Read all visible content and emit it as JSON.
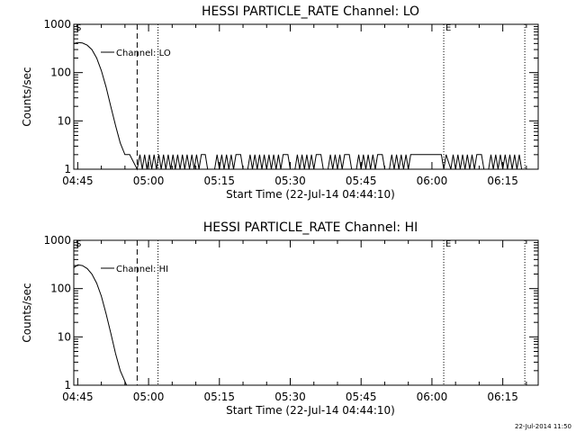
{
  "footer": {
    "timestamp": "22-Jul-2014 11:50"
  },
  "chart_data": [
    {
      "type": "line",
      "title": "HESSI PARTICLE_RATE Channel: LO",
      "ylabel": "Counts/sec",
      "xlabel": "Start Time (22-Jul-14 04:44:10)",
      "y_scale": "log",
      "ylim": [
        1,
        1000
      ],
      "y_ticks": [
        "1",
        "10",
        "100",
        "1000"
      ],
      "xlim": [
        "04:44:10",
        "06:22:30"
      ],
      "x_ticks": [
        "04:45",
        "05:00",
        "05:15",
        "05:30",
        "05:45",
        "06:00",
        "06:15"
      ],
      "legend": "Channel: LO",
      "markers": [
        {
          "label": "S",
          "time": "04:44:10",
          "style": "dotted"
        },
        {
          "label": "",
          "time": "04:57:35",
          "style": "dashed"
        },
        {
          "label": "",
          "time": "05:02:00",
          "style": "dotted"
        },
        {
          "label": "E",
          "time": "06:02:30",
          "style": "dotted"
        },
        {
          "label": "",
          "time": "06:19:40",
          "style": "dotted"
        }
      ],
      "series": [
        {
          "x": [
            "04:44:10",
            "04:45:00",
            "04:46:00",
            "04:47:00",
            "04:48:00",
            "04:49:00",
            "04:50:00",
            "04:51:00",
            "04:52:00",
            "04:53:00",
            "04:54:00",
            "04:55:00",
            "04:55:40",
            "04:56:00",
            "04:57:35",
            "04:58:10",
            "04:58:40",
            "04:59:10",
            "04:59:40",
            "05:00:10",
            "05:00:40",
            "05:01:10",
            "05:01:40",
            "05:02:10",
            "05:02:40",
            "05:03:10",
            "05:03:40",
            "05:04:10",
            "05:04:40",
            "05:05:10",
            "05:05:40",
            "05:06:10",
            "05:06:40",
            "05:07:10",
            "05:07:40",
            "05:08:10",
            "05:08:40",
            "05:09:10",
            "05:09:40",
            "05:10:10",
            "05:10:40",
            "05:11:10",
            "05:12:00",
            "05:12:30",
            "05:14:00",
            "05:14:30",
            "05:15:00",
            "05:15:30",
            "05:16:00",
            "05:16:30",
            "05:17:00",
            "05:17:30",
            "05:18:00",
            "05:18:30",
            "05:19:30",
            "05:20:00",
            "05:21:00",
            "05:21:30",
            "05:22:00",
            "05:22:30",
            "05:23:00",
            "05:23:30",
            "05:24:00",
            "05:24:30",
            "05:25:00",
            "05:25:30",
            "05:26:00",
            "05:26:30",
            "05:27:00",
            "05:27:30",
            "05:28:00",
            "05:28:30",
            "05:29:30",
            "05:30:00",
            "05:31:00",
            "05:31:30",
            "05:32:00",
            "05:32:30",
            "05:33:00",
            "05:33:30",
            "05:34:00",
            "05:34:30",
            "05:35:00",
            "05:35:30",
            "05:36:30",
            "05:37:00",
            "05:38:00",
            "05:38:30",
            "05:39:00",
            "05:39:30",
            "05:40:00",
            "05:40:30",
            "05:41:00",
            "05:41:30",
            "05:42:30",
            "05:43:00",
            "05:44:00",
            "05:44:30",
            "05:45:00",
            "05:45:30",
            "05:46:00",
            "05:46:30",
            "05:47:00",
            "05:47:30",
            "05:48:00",
            "05:48:30",
            "05:49:30",
            "05:50:00",
            "05:51:00",
            "05:51:30",
            "05:52:00",
            "05:52:30",
            "05:53:00",
            "05:53:30",
            "05:54:00",
            "05:54:30",
            "05:55:00",
            "05:55:30",
            "05:56:00",
            "05:56:30",
            "06:01:30",
            "06:02:00",
            "06:02:30",
            "06:03:00",
            "06:04:00",
            "06:04:30",
            "06:05:00",
            "06:05:30",
            "06:06:00",
            "06:06:30",
            "06:07:00",
            "06:07:30",
            "06:08:00",
            "06:08:30",
            "06:09:00",
            "06:09:30",
            "06:10:30",
            "06:11:00",
            "06:12:00",
            "06:12:30",
            "06:13:00",
            "06:13:30",
            "06:14:00",
            "06:14:30",
            "06:15:00",
            "06:15:30",
            "06:16:00",
            "06:16:30",
            "06:17:00",
            "06:17:30",
            "06:18:00",
            "06:18:30",
            "06:19:00"
          ],
          "y": [
            400,
            420,
            410,
            370,
            300,
            200,
            110,
            50,
            20,
            8,
            3.5,
            2,
            2,
            2,
            1,
            2,
            1,
            2,
            1,
            2,
            1,
            2,
            1,
            2,
            1,
            2,
            1,
            2,
            1,
            2,
            1,
            2,
            1,
            2,
            1,
            2,
            1,
            2,
            1,
            2,
            1,
            2,
            2,
            1,
            1,
            2,
            1,
            2,
            1,
            2,
            1,
            2,
            1,
            2,
            2,
            1,
            1,
            2,
            1,
            2,
            1,
            2,
            1,
            2,
            1,
            2,
            1,
            2,
            1,
            2,
            1,
            2,
            2,
            1,
            1,
            2,
            1,
            2,
            1,
            2,
            1,
            2,
            1,
            2,
            2,
            1,
            1,
            2,
            1,
            2,
            1,
            2,
            1,
            2,
            2,
            1,
            1,
            2,
            1,
            2,
            1,
            2,
            1,
            2,
            1,
            2,
            2,
            1,
            1,
            2,
            1,
            2,
            1,
            2,
            1,
            2,
            1,
            2,
            2,
            2,
            2,
            2,
            1,
            2,
            1,
            2,
            1,
            2,
            1,
            2,
            1,
            2,
            1,
            2,
            1,
            2,
            2,
            1,
            1,
            2,
            1,
            2,
            1,
            2,
            1,
            2,
            1,
            2,
            1,
            2,
            1,
            2,
            1
          ]
        }
      ]
    },
    {
      "type": "line",
      "title": "HESSI PARTICLE_RATE Channel: HI",
      "ylabel": "Counts/sec",
      "xlabel": "Start Time (22-Jul-14 04:44:10)",
      "y_scale": "log",
      "ylim": [
        1,
        1000
      ],
      "y_ticks": [
        "1",
        "10",
        "100",
        "1000"
      ],
      "xlim": [
        "04:44:10",
        "06:22:30"
      ],
      "x_ticks": [
        "04:45",
        "05:00",
        "05:15",
        "05:30",
        "05:45",
        "06:00",
        "06:15"
      ],
      "legend": "Channel: HI",
      "markers": [
        {
          "label": "S",
          "time": "04:44:10",
          "style": "dotted"
        },
        {
          "label": "",
          "time": "04:57:35",
          "style": "dashed"
        },
        {
          "label": "",
          "time": "05:02:00",
          "style": "dotted"
        },
        {
          "label": "E",
          "time": "06:02:30",
          "style": "dotted"
        },
        {
          "label": "",
          "time": "06:19:40",
          "style": "dotted"
        }
      ],
      "series": [
        {
          "x": [
            "04:44:10",
            "04:45:00",
            "04:46:00",
            "04:47:00",
            "04:48:00",
            "04:49:00",
            "04:50:00",
            "04:51:00",
            "04:52:00",
            "04:53:00",
            "04:54:00",
            "04:55:00",
            "04:55:20"
          ],
          "y": [
            270,
            310,
            300,
            260,
            200,
            130,
            70,
            30,
            12,
            4.5,
            2,
            1.2,
            1
          ]
        }
      ]
    }
  ]
}
